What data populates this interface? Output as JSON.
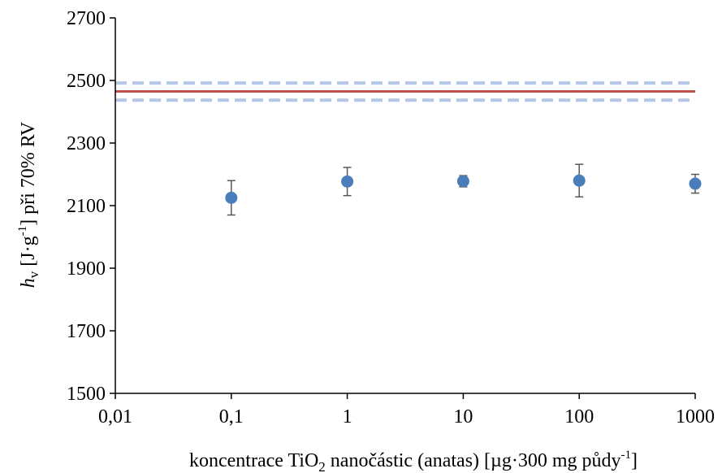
{
  "chart_data": {
    "type": "scatter",
    "title": "",
    "xlabel": {
      "main": "koncentrace TiO",
      "sub": "2",
      "rest": " nanočástic (anatas) [µg·300 mg půdy",
      "sup": "-1",
      "end": "]"
    },
    "ylabel": {
      "var": "h",
      "sub": "v",
      "unit_open": " [J·g",
      "sup": "-1",
      "unit_close": "] při 70% RV"
    },
    "x_scale": "log",
    "xlim": [
      0.01,
      1000
    ],
    "ylim": [
      1500,
      2700
    ],
    "x_ticks": [
      0.01,
      0.1,
      1,
      10,
      100,
      1000
    ],
    "x_tick_labels": [
      "0,01",
      "0,1",
      "1",
      "10",
      "100",
      "1000"
    ],
    "y_ticks": [
      1500,
      1700,
      1900,
      2100,
      2300,
      2500,
      2700
    ],
    "y_tick_labels": [
      "1500",
      "1700",
      "1900",
      "2100",
      "2300",
      "2500",
      "2700"
    ],
    "grid": false,
    "points": [
      {
        "x": 0.1,
        "y": 2125,
        "err": 55
      },
      {
        "x": 1,
        "y": 2177,
        "err": 45
      },
      {
        "x": 10,
        "y": 2178,
        "err": 18
      },
      {
        "x": 100,
        "y": 2180,
        "err": 52
      },
      {
        "x": 1000,
        "y": 2170,
        "err": 30
      }
    ],
    "reference_line": {
      "y": 2465,
      "color": "#c0504d"
    },
    "reference_band": {
      "lower": 2437,
      "upper": 2492,
      "color": "#b4c7e7"
    },
    "colors": {
      "points": "#4a7ebb",
      "error_bars": "#595959",
      "axis": "#000000"
    }
  }
}
